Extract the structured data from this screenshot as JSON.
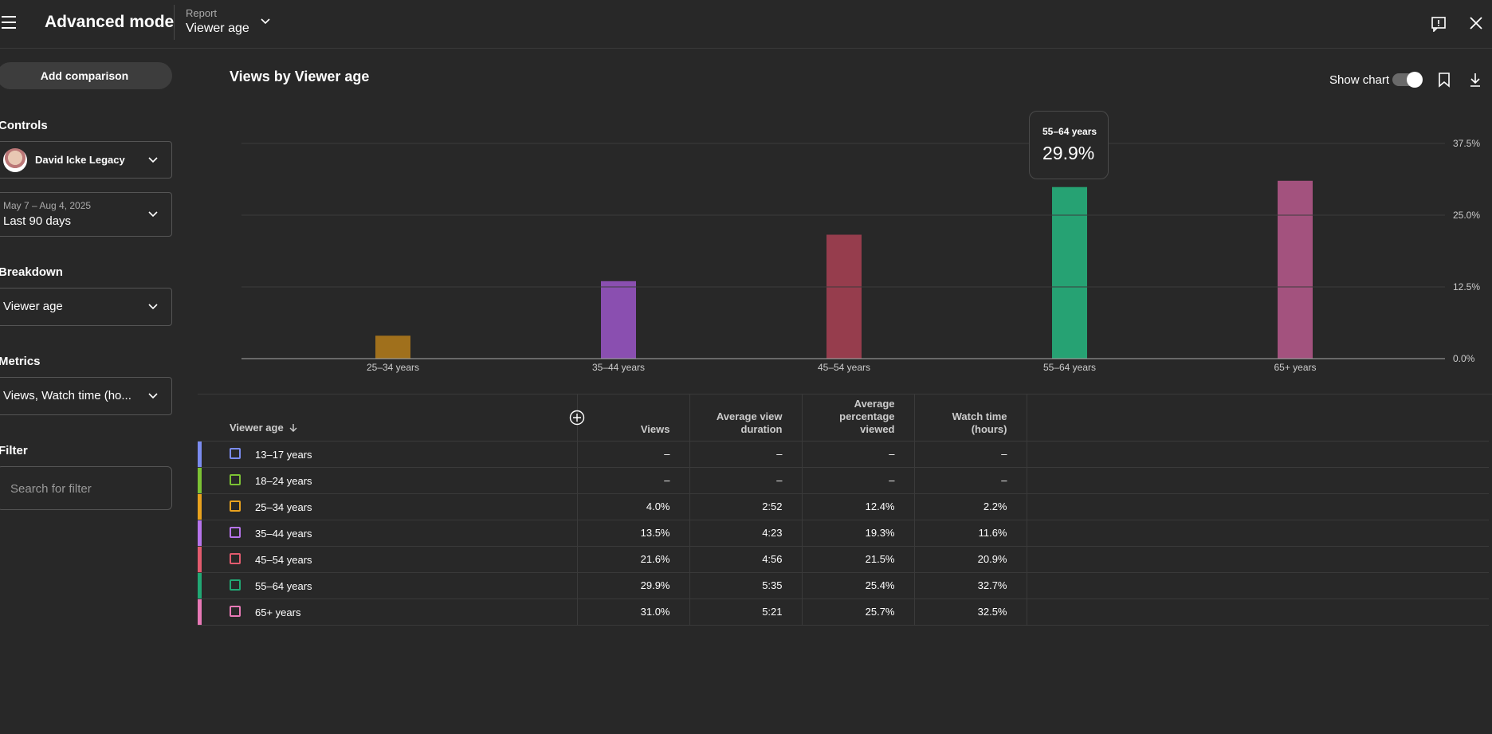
{
  "header": {
    "title": "Advanced mode",
    "report_label": "Report",
    "report_value": "Viewer age"
  },
  "sidebar": {
    "add_comparison": "Add comparison",
    "controls_heading": "Controls",
    "account_name": "David Icke Legacy",
    "date_range": "May 7 – Aug 4, 2025",
    "date_period": "Last 90 days",
    "breakdown_heading": "Breakdown",
    "breakdown_value": "Viewer age",
    "metrics_heading": "Metrics",
    "metrics_value": "Views, Watch time (ho...",
    "filter_heading": "Filter",
    "filter_placeholder": "Search for filter"
  },
  "chart_header": {
    "title": "Views by Viewer age",
    "show_chart_label": "Show chart",
    "show_chart_on": true
  },
  "tooltip": {
    "label": "55–64 years",
    "value": "29.9%"
  },
  "chart_data": {
    "type": "bar",
    "categories": [
      "25–34 years",
      "35–44 years",
      "45–54 years",
      "55–64 years",
      "65+ years"
    ],
    "values": [
      4.0,
      13.5,
      21.6,
      29.9,
      31.0
    ],
    "colors": [
      "#a0701c",
      "#8a4fb0",
      "#963d4d",
      "#26a273",
      "#a3527e"
    ],
    "y_ticks": [
      "0.0%",
      "12.5%",
      "25.0%",
      "37.5%"
    ],
    "ylim": [
      0,
      37.5
    ],
    "grid": true
  },
  "table": {
    "headers": {
      "name": "Viewer age",
      "views": "Views",
      "avg_view_duration": "Average view duration",
      "avg_pct_viewed": "Average percentage viewed",
      "watch_time": "Watch time (hours)"
    },
    "rows": [
      {
        "label": "13–17 years",
        "color": "#7b8cf0",
        "views": "–",
        "avd": "–",
        "apv": "–",
        "wt": "–"
      },
      {
        "label": "18–24 years",
        "color": "#7cc234",
        "views": "–",
        "avd": "–",
        "apv": "–",
        "wt": "–"
      },
      {
        "label": "25–34 years",
        "color": "#e9a21e",
        "views": "4.0%",
        "avd": "2:52",
        "apv": "12.4%",
        "wt": "2.2%"
      },
      {
        "label": "35–44 years",
        "color": "#b774ec",
        "views": "13.5%",
        "avd": "4:23",
        "apv": "19.3%",
        "wt": "11.6%"
      },
      {
        "label": "45–54 years",
        "color": "#e35b6e",
        "views": "21.6%",
        "avd": "4:56",
        "apv": "21.5%",
        "wt": "20.9%"
      },
      {
        "label": "55–64 years",
        "color": "#21a874",
        "views": "29.9%",
        "avd": "5:35",
        "apv": "25.4%",
        "wt": "32.7%"
      },
      {
        "label": "65+ years",
        "color": "#e879b6",
        "views": "31.0%",
        "avd": "5:21",
        "apv": "25.7%",
        "wt": "32.5%"
      }
    ]
  }
}
